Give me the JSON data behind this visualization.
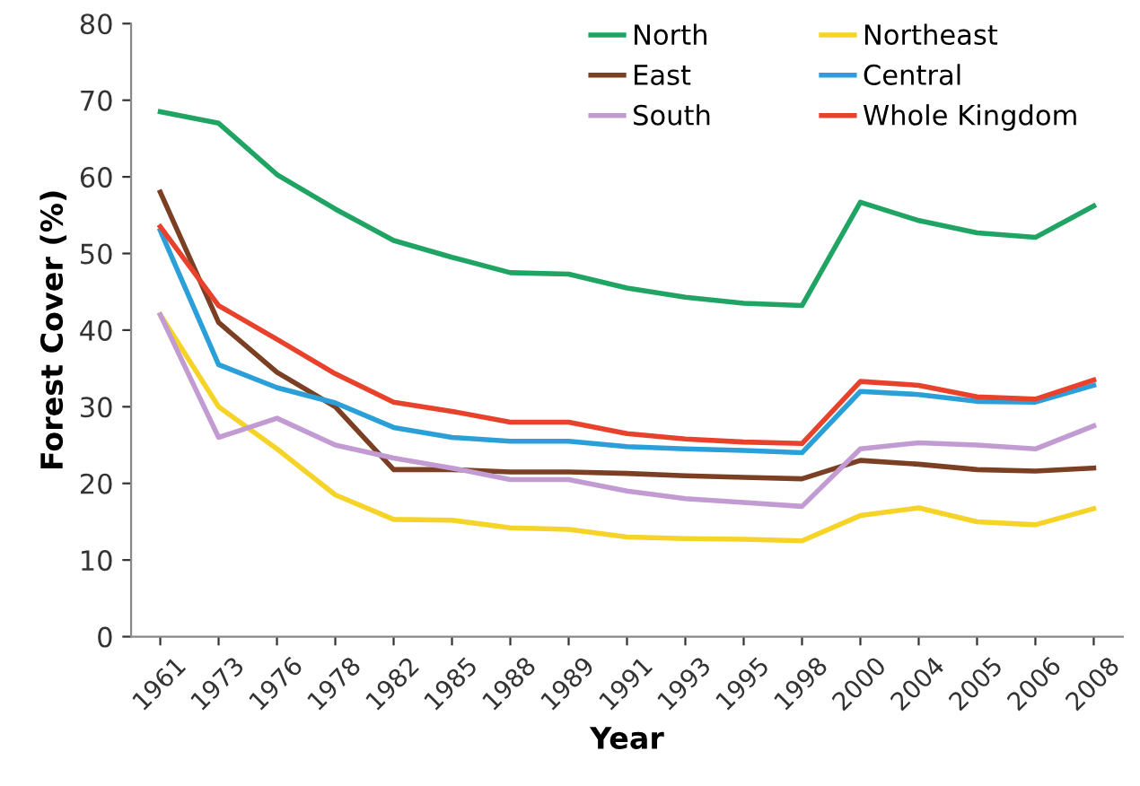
{
  "chart_data": {
    "type": "line",
    "xlabel": "Year",
    "ylabel": "Forest Cover (%)",
    "categories": [
      "1961",
      "1973",
      "1976",
      "1978",
      "1982",
      "1985",
      "1988",
      "1989",
      "1991",
      "1993",
      "1995",
      "1998",
      "2000",
      "2004",
      "2005",
      "2006",
      "2008"
    ],
    "series": [
      {
        "name": "North",
        "color": "#1fa463",
        "values": [
          68.5,
          67,
          60.3,
          55.8,
          51.7,
          49.5,
          47.5,
          47.3,
          45.5,
          44.3,
          43.5,
          43.2,
          56.7,
          54.3,
          52.7,
          52.1,
          56.2
        ]
      },
      {
        "name": "Northeast",
        "color": "#f5d327",
        "values": [
          42,
          30,
          24.5,
          18.5,
          15.3,
          15.2,
          14.2,
          14,
          13,
          12.8,
          12.7,
          12.5,
          15.8,
          16.8,
          15,
          14.6,
          16.7
        ]
      },
      {
        "name": "East",
        "color": "#7b3f24",
        "values": [
          58,
          41,
          34.5,
          30,
          21.8,
          21.8,
          21.5,
          21.5,
          21.3,
          21,
          20.8,
          20.6,
          23,
          22.5,
          21.8,
          21.6,
          22
        ]
      },
      {
        "name": "Central",
        "color": "#2a9fd8",
        "values": [
          53,
          35.5,
          32.5,
          30.5,
          27.3,
          26,
          25.5,
          25.5,
          24.8,
          24.5,
          24.3,
          24,
          32,
          31.6,
          30.7,
          30.6,
          32.8
        ]
      },
      {
        "name": "South",
        "color": "#c39bd3",
        "values": [
          42,
          26,
          28.5,
          25,
          23.3,
          22,
          20.5,
          20.5,
          19,
          18,
          17.5,
          17,
          24.5,
          25.3,
          25,
          24.5,
          27.5
        ]
      },
      {
        "name": "Whole Kingdom",
        "color": "#e8412c",
        "values": [
          53.5,
          43.2,
          38.8,
          34.3,
          30.6,
          29.4,
          28,
          28,
          26.5,
          25.8,
          25.4,
          25.2,
          33.3,
          32.8,
          31.3,
          31,
          33.5
        ]
      }
    ],
    "ylim": [
      0,
      80
    ],
    "yticks": [
      0,
      10,
      20,
      30,
      40,
      50,
      60,
      70,
      80
    ],
    "grid": false,
    "legend": "top right",
    "marker": "none",
    "line_style": "solid"
  }
}
